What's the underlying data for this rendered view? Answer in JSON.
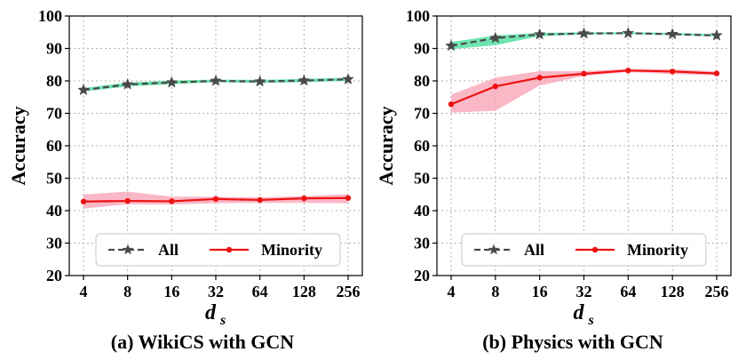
{
  "chart_data": [
    {
      "type": "line",
      "caption": "(a) WikiCS with GCN",
      "xlabel": "d",
      "xlabel_subscript": "s",
      "ylabel": "Accuracy",
      "categories": [
        "4",
        "8",
        "16",
        "32",
        "64",
        "128",
        "256"
      ],
      "yticks": [
        20,
        30,
        40,
        50,
        60,
        70,
        80,
        90,
        100
      ],
      "ylim": [
        20,
        100
      ],
      "grid": true,
      "legend": {
        "placement": "lower-center",
        "entries": [
          "All",
          "Minority"
        ]
      },
      "series": [
        {
          "name": "All",
          "values": [
            77.2,
            78.9,
            79.5,
            80.0,
            79.8,
            80.1,
            80.5
          ],
          "lower": [
            76.7,
            78.3,
            79.0,
            79.6,
            79.4,
            79.6,
            80.0
          ],
          "upper": [
            77.8,
            79.5,
            80.1,
            80.4,
            80.3,
            80.6,
            81.0
          ],
          "color": "#4a4a4a",
          "band_color": "#3ddc97",
          "marker": "star",
          "linestyle": "dashed"
        },
        {
          "name": "Minority",
          "values": [
            42.8,
            43.0,
            42.9,
            43.6,
            43.3,
            43.8,
            43.9
          ],
          "lower": [
            40.6,
            42.0,
            41.9,
            42.3,
            42.4,
            42.4,
            42.3
          ],
          "upper": [
            45.0,
            45.9,
            44.3,
            44.3,
            44.1,
            44.5,
            45.1
          ],
          "color": "#ee1111",
          "band_color": "#f8a0b4",
          "marker": "circle",
          "linestyle": "solid"
        }
      ]
    },
    {
      "type": "line",
      "caption": "(b) Physics with GCN",
      "xlabel": "d",
      "xlabel_subscript": "s",
      "ylabel": "Accuracy",
      "categories": [
        "4",
        "8",
        "16",
        "32",
        "64",
        "128",
        "256"
      ],
      "yticks": [
        20,
        30,
        40,
        50,
        60,
        70,
        80,
        90,
        100
      ],
      "ylim": [
        20,
        100
      ],
      "grid": true,
      "legend": {
        "placement": "lower-center",
        "entries": [
          "All",
          "Minority"
        ]
      },
      "series": [
        {
          "name": "All",
          "values": [
            90.8,
            93.2,
            94.3,
            94.6,
            94.7,
            94.4,
            94.0
          ],
          "lower": [
            89.8,
            91.0,
            93.8,
            94.3,
            94.4,
            94.1,
            93.7
          ],
          "upper": [
            92.0,
            94.0,
            94.8,
            95.0,
            95.0,
            94.8,
            94.4
          ],
          "color": "#4a4a4a",
          "band_color": "#3ddc97",
          "marker": "star",
          "linestyle": "dashed"
        },
        {
          "name": "Minority",
          "values": [
            72.8,
            78.3,
            81.0,
            82.2,
            83.2,
            82.9,
            82.3
          ],
          "lower": [
            70.2,
            70.8,
            78.6,
            81.5,
            82.7,
            82.1,
            81.7
          ],
          "upper": [
            75.8,
            81.0,
            83.0,
            83.0,
            83.7,
            83.6,
            82.9
          ],
          "color": "#ee1111",
          "band_color": "#f8a0b4",
          "marker": "circle",
          "linestyle": "solid"
        }
      ]
    }
  ]
}
